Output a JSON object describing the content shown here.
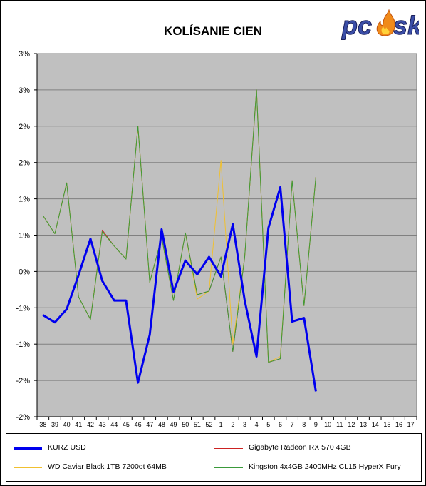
{
  "logo": {
    "text": "pcsk",
    "letters_left": "pc",
    "letters_right": "sk"
  },
  "chart_data": {
    "type": "line",
    "title": "KOLÍSANIE CIEN",
    "xlabel": "",
    "ylabel": "",
    "categories": [
      "38",
      "39",
      "40",
      "41",
      "42",
      "43",
      "44",
      "45",
      "46",
      "47",
      "48",
      "49",
      "50",
      "51",
      "52",
      "1",
      "2",
      "3",
      "4",
      "5",
      "6",
      "7",
      "8",
      "9",
      "10",
      "11",
      "12",
      "13",
      "14",
      "15",
      "16",
      "17"
    ],
    "y_tick_labels": [
      "3%",
      "3%",
      "2%",
      "2%",
      "1%",
      "1%",
      "0%",
      "-1%",
      "-1%",
      "-2%",
      "-2%"
    ],
    "ylim": [
      -2.0,
      3.0
    ],
    "grid": true,
    "legend_position": "bottom",
    "series": [
      {
        "name": "KURZ USD",
        "color": "#0000ee",
        "values": [
          -0.6,
          -0.7,
          -0.52,
          -0.05,
          0.45,
          -0.13,
          -0.4,
          -0.4,
          -1.53,
          -0.87,
          0.58,
          -0.28,
          0.15,
          -0.04,
          0.2,
          -0.07,
          0.65,
          -0.4,
          -1.17,
          0.6,
          1.16,
          -0.69,
          -0.64,
          -1.65,
          null,
          null,
          null,
          null,
          null,
          null,
          null,
          null
        ]
      },
      {
        "name": "Gigabyte Radeon RX 570 4GB",
        "color": "#cc2222",
        "values": [
          0.77,
          0.52,
          1.22,
          -0.35,
          -0.66,
          0.57,
          0.35,
          0.17,
          2.0,
          -0.15,
          0.47,
          -0.4,
          0.53,
          -0.32,
          -0.27,
          0.2,
          -1.1,
          0.2,
          2.5,
          -1.25,
          -1.2,
          1.25,
          -0.47,
          1.3,
          null,
          null,
          null,
          null,
          null,
          null,
          null,
          null
        ]
      },
      {
        "name": "WD Caviar Black 1TB 7200ot 64MB",
        "color": "#f0c030",
        "values": [
          0.77,
          0.52,
          1.22,
          -0.35,
          -0.66,
          0.55,
          0.35,
          0.17,
          2.0,
          -0.15,
          0.47,
          -0.4,
          0.53,
          -0.38,
          -0.27,
          1.53,
          -1.0,
          0.2,
          2.5,
          -1.25,
          -1.17,
          1.25,
          -0.47,
          1.3,
          null,
          null,
          null,
          null,
          null,
          null,
          null,
          null
        ]
      },
      {
        "name": "Kingston 4x4GB 2400MHz CL15 HyperX Fury",
        "color": "#3a9a3a",
        "values": [
          0.77,
          0.52,
          1.22,
          -0.35,
          -0.66,
          0.55,
          0.35,
          0.17,
          2.0,
          -0.15,
          0.47,
          -0.4,
          0.53,
          -0.32,
          -0.27,
          0.2,
          -1.1,
          0.2,
          2.5,
          -1.25,
          -1.2,
          1.25,
          -0.47,
          1.3,
          null,
          null,
          null,
          null,
          null,
          null,
          null,
          null
        ]
      }
    ]
  }
}
